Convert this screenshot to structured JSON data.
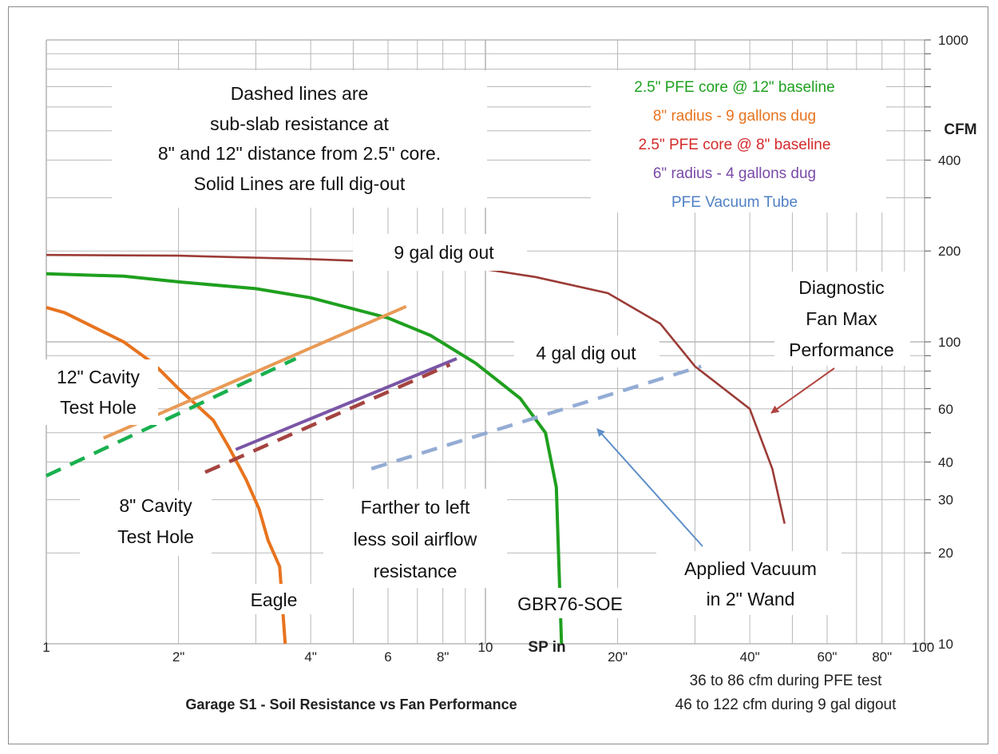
{
  "chart_data": {
    "type": "line",
    "title": "Garage S1  - Soil Resistance vs Fan Performance",
    "xlabel": "SP in",
    "ylabel": "CFM",
    "x_scale": "log",
    "y_scale": "log",
    "xlim": [
      1,
      100
    ],
    "ylim": [
      10,
      1000
    ],
    "grid": true,
    "x_tick_labels": [
      {
        "value": 1,
        "label": "1"
      },
      {
        "value": 2,
        "label": "2\""
      },
      {
        "value": 4,
        "label": "4\""
      },
      {
        "value": 6,
        "label": "6"
      },
      {
        "value": 8,
        "label": "8\""
      },
      {
        "value": 10,
        "label": "10"
      },
      {
        "value": 20,
        "label": "20\""
      },
      {
        "value": 40,
        "label": "40\""
      },
      {
        "value": 60,
        "label": "60\""
      },
      {
        "value": 80,
        "label": "80\""
      },
      {
        "value": 100,
        "label": "100"
      }
    ],
    "y_tick_labels": [
      {
        "value": 10,
        "label": "10"
      },
      {
        "value": 20,
        "label": "20"
      },
      {
        "value": 30,
        "label": "30"
      },
      {
        "value": 40,
        "label": "40"
      },
      {
        "value": 60,
        "label": "60"
      },
      {
        "value": 100,
        "label": "100"
      },
      {
        "value": 200,
        "label": "200"
      },
      {
        "value": 400,
        "label": "400"
      },
      {
        "value": 1000,
        "label": "1000"
      }
    ],
    "series": [
      {
        "name": "Eagle",
        "color": "#e8731e",
        "dashed": false,
        "x": [
          1,
          1.1,
          1.5,
          1.75,
          2.0,
          2.4,
          2.6,
          2.85,
          3.05,
          3.2,
          3.4,
          3.5
        ],
        "y": [
          130,
          125,
          100,
          85,
          70,
          55,
          45,
          35,
          28,
          22,
          18,
          10
        ]
      },
      {
        "name": "GBR76-SOE",
        "color": "#1fa01f",
        "dashed": false,
        "x": [
          1,
          1.5,
          2,
          3,
          4,
          6,
          7.5,
          9.5,
          12,
          13.7,
          14.5,
          14.9
        ],
        "y": [
          168,
          165,
          158,
          150,
          140,
          120,
          105,
          85,
          65,
          50,
          33,
          10
        ]
      },
      {
        "name": "Diagnostic Fan Max Performance",
        "color": "#9b3b36",
        "dashed": false,
        "x": [
          1,
          2,
          4,
          6,
          9,
          13,
          19,
          25,
          30,
          40,
          45,
          48
        ],
        "y": [
          194,
          193,
          188,
          184,
          178,
          164,
          145,
          115,
          83,
          60,
          38,
          25
        ]
      },
      {
        "name": "9 gal dig out",
        "color": "#e89a55",
        "dashed": false,
        "x": [
          1.35,
          6.6
        ],
        "y": [
          48,
          131
        ]
      },
      {
        "name": "4 gal dig out",
        "color": "#7a56a6",
        "dashed": false,
        "x": [
          2.7,
          8.6
        ],
        "y": [
          44,
          88
        ]
      },
      {
        "name": "12\" Cavity Test Hole",
        "color": "#19b04f",
        "dashed": true,
        "x": [
          1,
          3.7
        ],
        "y": [
          36,
          88
        ]
      },
      {
        "name": "8\" Cavity Test Hole",
        "color": "#a44440",
        "dashed": true,
        "x": [
          2.3,
          8.3
        ],
        "y": [
          37,
          84
        ]
      },
      {
        "name": "Applied Vacuum in 2\" Wand",
        "color": "#93acd4",
        "dashed": true,
        "x": [
          5.5,
          31
        ],
        "y": [
          38,
          83
        ]
      }
    ],
    "annotations": {
      "info_block": [
        "Dashed lines are",
        "sub-slab resistance at",
        "8\" and 12\" distance from 2.5\" core.",
        "Solid Lines are full dig-out"
      ],
      "legend_block": [
        {
          "text": "2.5\" PFE core @ 12\" baseline",
          "color": "#1fa01f"
        },
        {
          "text": "8\" radius - 9 gallons dug",
          "color": "#e8731e"
        },
        {
          "text": "2.5\" PFE core @ 8\" baseline",
          "color": "#d42a2a"
        },
        {
          "text": "6\" radius - 4 gallons dug",
          "color": "#7a4aa8"
        },
        {
          "text": "PFE Vacuum Tube",
          "color": "#4f80c4"
        }
      ],
      "nine_gal": "9 gal dig out",
      "four_gal": "4 gal dig out",
      "cavity12": [
        "12\" Cavity",
        "Test Hole"
      ],
      "cavity8": [
        "8\" Cavity",
        "Test Hole"
      ],
      "farther": [
        "Farther to left",
        "less soil airflow",
        "resistance"
      ],
      "eagle": "Eagle",
      "gbr": "GBR76-SOE",
      "diag": [
        "Diagnostic",
        "Fan Max",
        "Performance"
      ],
      "vacuum": [
        "Applied Vacuum",
        "in 2\" Wand"
      ],
      "cfm_range": [
        "36 to 86 cfm during PFE test",
        "46 to 122 cfm during 9 gal digout"
      ]
    }
  },
  "colors": {
    "diag_text": "#9b3b36",
    "vacuum_text": "#2e7bc4",
    "grid": "#b8b8b8"
  }
}
